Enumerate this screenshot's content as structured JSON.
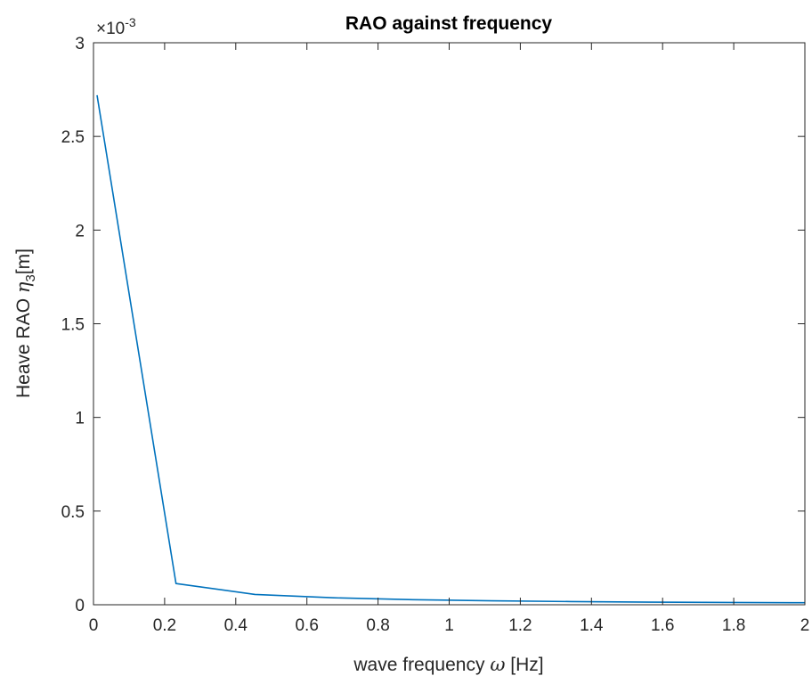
{
  "chart_data": {
    "type": "line",
    "title": "RAO against frequency",
    "xlabel_prefix": "wave frequency",
    "xlabel_symbol": "ω",
    "xlabel_unit": "[Hz]",
    "ylabel_prefix": "Heave RAO",
    "ylabel_symbol": "η",
    "ylabel_subscript": "3",
    "ylabel_unit": "[m]",
    "y_exponent_base": "×10",
    "y_exponent_power": "-3",
    "xlim": [
      0,
      2
    ],
    "ylim": [
      0,
      3
    ],
    "y_scale_factor": 0.001,
    "xticks": [
      0,
      0.2,
      0.4,
      0.6,
      0.8,
      1,
      1.2,
      1.4,
      1.6,
      1.8,
      2
    ],
    "xtick_labels": [
      "0",
      "0.2",
      "0.4",
      "0.6",
      "0.8",
      "1",
      "1.2",
      "1.4",
      "1.6",
      "1.8",
      "2"
    ],
    "yticks": [
      0,
      0.5,
      1,
      1.5,
      2,
      2.5,
      3
    ],
    "ytick_labels": [
      "0",
      "0.5",
      "1",
      "1.5",
      "2",
      "2.5",
      "3"
    ],
    "grid": false,
    "series": [
      {
        "color": "#0072BD",
        "x": [
          0.01,
          0.232,
          0.454,
          0.676,
          0.898,
          1.12,
          1.342,
          1.564,
          1.786,
          2.0
        ],
        "y": [
          0.00272,
          0.000113,
          5.5e-05,
          3.7e-05,
          2.7e-05,
          2.1e-05,
          1.7e-05,
          1.4e-05,
          1.2e-05,
          1.1e-05
        ]
      }
    ]
  }
}
